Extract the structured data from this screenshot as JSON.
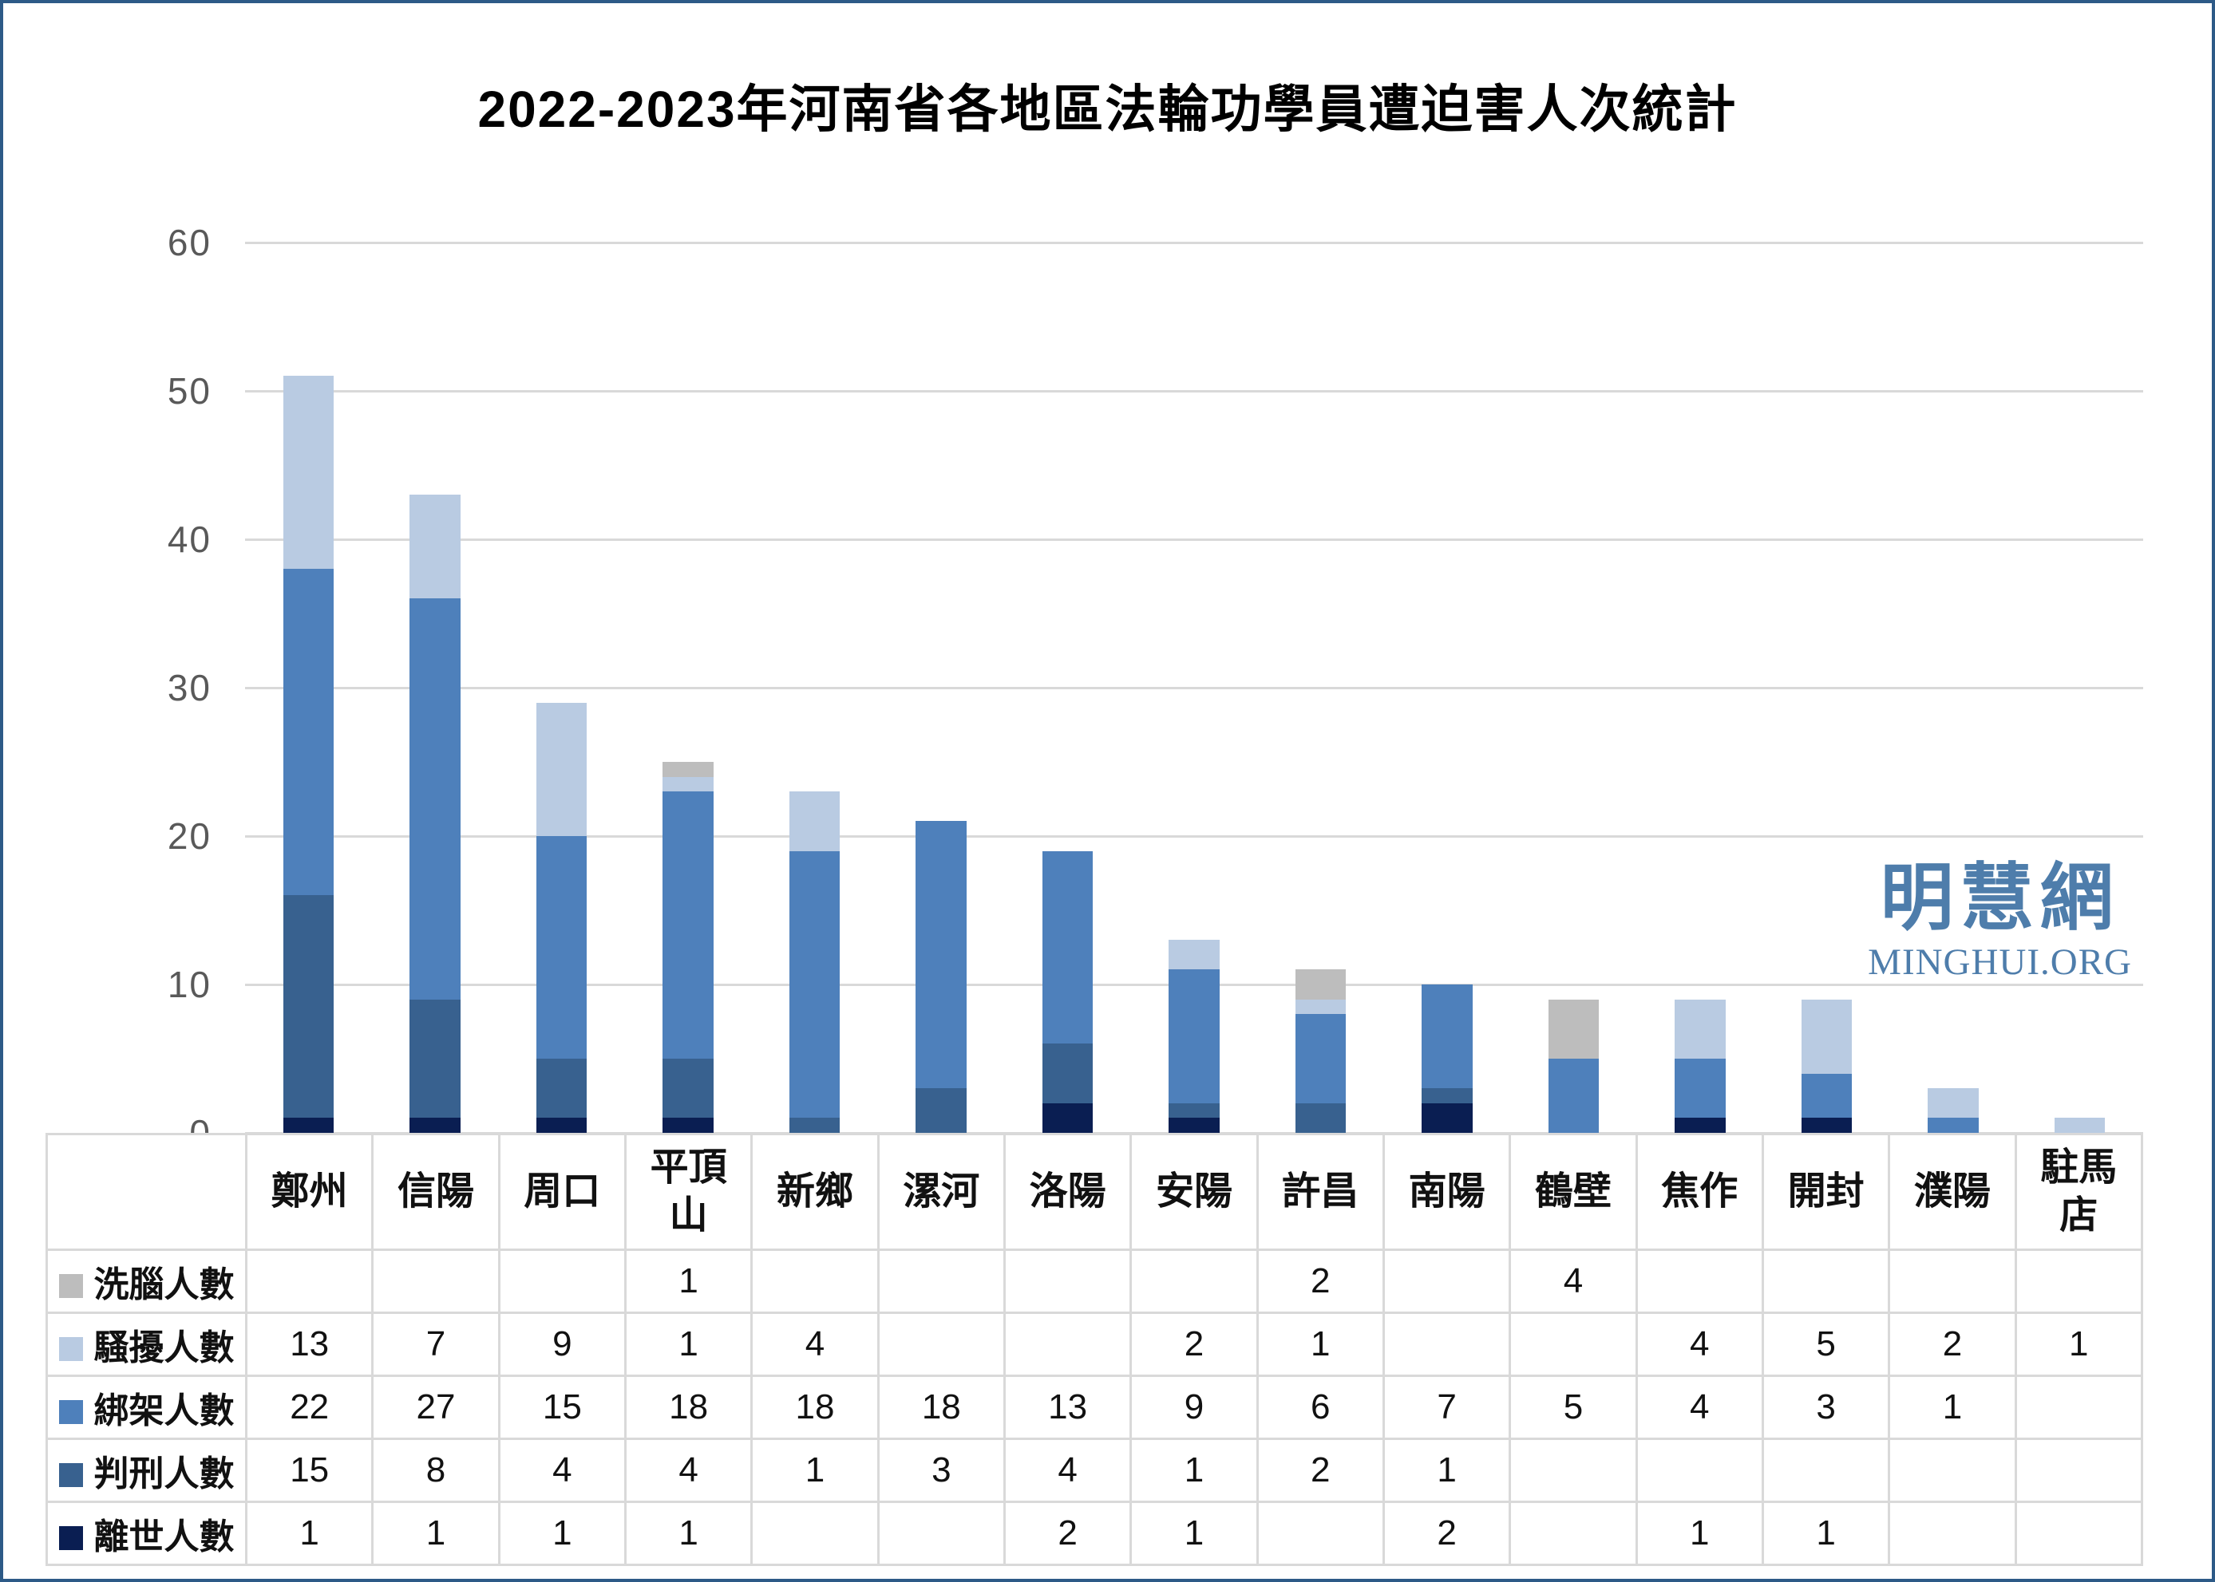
{
  "title": "2022-2023年河南省各地區法輪功學員遭迫害人次統計",
  "watermark": {
    "cjk": "明慧網",
    "latin": "MINGHUI.ORG",
    "color": "#4e7dab"
  },
  "chart_data": {
    "type": "bar",
    "stacked": true,
    "title": "2022-2023年河南省各地區法輪功學員遭迫害人次統計",
    "categories": [
      "鄭州",
      "信陽",
      "周口",
      "平頂山",
      "新鄉",
      "漯河",
      "洛陽",
      "安陽",
      "許昌",
      "南陽",
      "鶴壁",
      "焦作",
      "開封",
      "濮陽",
      "駐馬店"
    ],
    "series": [
      {
        "name": "洗腦人數",
        "color": "#bdbdbd",
        "values": [
          null,
          null,
          null,
          1,
          null,
          null,
          null,
          null,
          2,
          null,
          4,
          null,
          null,
          null,
          null
        ]
      },
      {
        "name": "騷擾人數",
        "color": "#b9cbe2",
        "values": [
          13,
          7,
          9,
          1,
          4,
          null,
          null,
          2,
          1,
          null,
          null,
          4,
          5,
          2,
          1
        ]
      },
      {
        "name": "綁架人數",
        "color": "#4e80bb",
        "values": [
          22,
          27,
          15,
          18,
          18,
          18,
          13,
          9,
          6,
          7,
          5,
          4,
          3,
          1,
          null
        ]
      },
      {
        "name": "判刑人數",
        "color": "#38618f",
        "values": [
          15,
          8,
          4,
          4,
          1,
          3,
          4,
          1,
          2,
          1,
          null,
          null,
          null,
          null,
          null
        ]
      },
      {
        "name": "離世人數",
        "color": "#0a1e52",
        "values": [
          1,
          1,
          1,
          1,
          null,
          null,
          2,
          1,
          null,
          2,
          null,
          1,
          1,
          null,
          null
        ]
      }
    ],
    "stack_order_top_to_bottom": [
      "洗腦人數",
      "騷擾人數",
      "綁架人數",
      "判刑人數",
      "離世人數"
    ],
    "ylim": [
      0,
      60
    ],
    "yticks": [
      0,
      10,
      20,
      30,
      40,
      50,
      60
    ],
    "grid": true,
    "gridline_color": "#d9d9d9",
    "legend_position": "table-left-column",
    "totals": [
      51,
      43,
      29,
      25,
      23,
      21,
      19,
      13,
      11,
      10,
      9,
      9,
      9,
      3,
      1
    ]
  }
}
